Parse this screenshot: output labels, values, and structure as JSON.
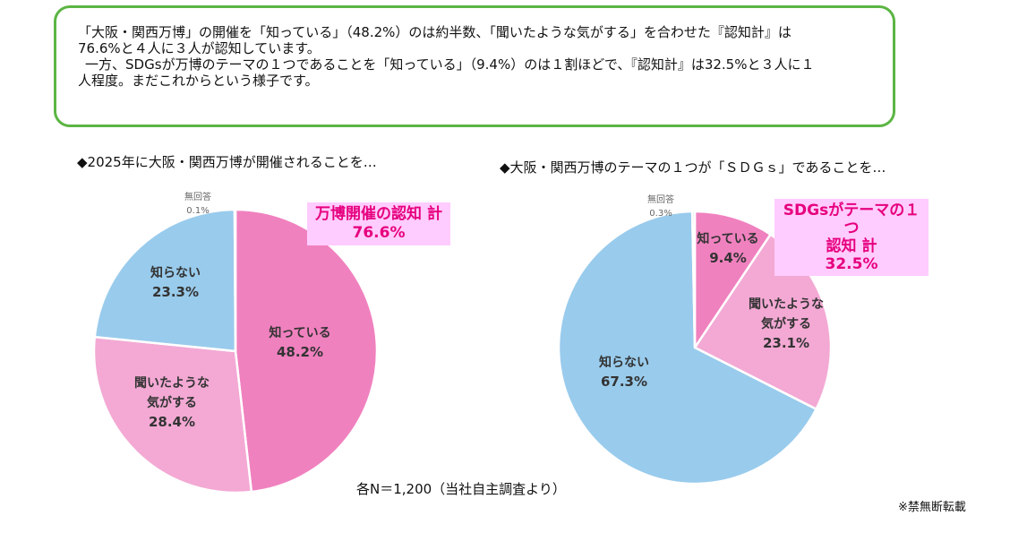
{
  "summary": {
    "line1": "「大阪・関西万博」の開催を「知っている」（48.2%）のは約半数、「聞いたような気がする」を合わせた『認知計』は",
    "line2": "76.6%と４人に３人が認知しています。",
    "line3": "一方、SDGsが万博のテーマの１つであることを「知っている」（9.4%）のは１割ほどで、『認知計』は32.5%と３人に１",
    "line4": "人程度。まだこれからという様子です。"
  },
  "footnote": "各N＝1,200（当社自主調査より）",
  "disclaimer": "※禁無断転載",
  "colors": {
    "know": "#f081bf",
    "heard": "#f3a9d4",
    "dontknow": "#99cbec",
    "noanswer": "#d9d9d9",
    "callout_bg": "#ffccff",
    "callout_text": "#e6007e",
    "border": "#5bb543"
  },
  "chart_data": [
    {
      "type": "pie",
      "title": "◆2025年に大阪・関西万博が開催されることを…",
      "slices": [
        {
          "label_lines": [
            "知っている"
          ],
          "value": 48.2,
          "value_label": "48.2%",
          "color": "#f081bf"
        },
        {
          "label_lines": [
            "聞いたような",
            "気がする"
          ],
          "value": 28.4,
          "value_label": "28.4%",
          "color": "#f3a9d4"
        },
        {
          "label_lines": [
            "知らない"
          ],
          "value": 23.3,
          "value_label": "23.3%",
          "color": "#99cbec"
        },
        {
          "label_lines": [
            "無回答"
          ],
          "value": 0.1,
          "value_label": "0.1%",
          "color": "#d9d9d9"
        }
      ],
      "callout": [
        "万博開催の認知 計",
        "76.6%"
      ]
    },
    {
      "type": "pie",
      "title": "◆大阪・関西万博のテーマの１つが「ＳＤＧｓ」であることを…",
      "slices": [
        {
          "label_lines": [
            "知っている"
          ],
          "value": 9.4,
          "value_label": "9.4%",
          "color": "#f081bf"
        },
        {
          "label_lines": [
            "聞いたような",
            "気がする"
          ],
          "value": 23.1,
          "value_label": "23.1%",
          "color": "#f3a9d4"
        },
        {
          "label_lines": [
            "知らない"
          ],
          "value": 67.3,
          "value_label": "67.3%",
          "color": "#99cbec"
        },
        {
          "label_lines": [
            "無回答"
          ],
          "value": 0.3,
          "value_label": "0.3%",
          "color": "#d9d9d9"
        }
      ],
      "callout": [
        "SDGsがテーマの１つ",
        "認知 計",
        "32.5%"
      ]
    }
  ]
}
